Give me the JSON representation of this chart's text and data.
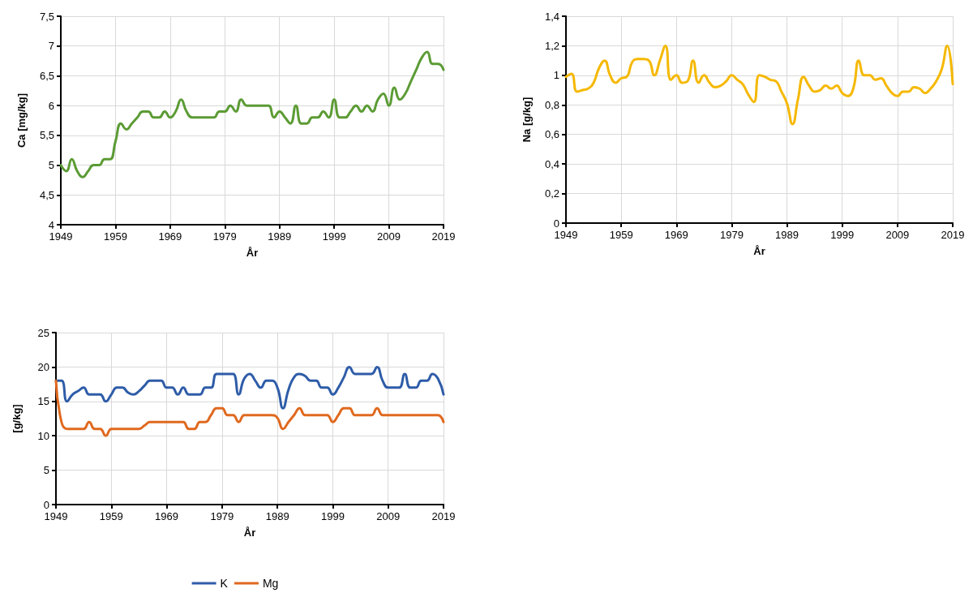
{
  "chart_data": [
    {
      "type": "line",
      "xlabel": "År",
      "ylabel": "Ca [mg/kg]",
      "grid": true,
      "legend": false,
      "x": [
        1949,
        1950,
        1951,
        1952,
        1953,
        1954,
        1955,
        1956,
        1957,
        1958,
        1959,
        1960,
        1961,
        1962,
        1963,
        1964,
        1965,
        1966,
        1967,
        1968,
        1969,
        1970,
        1971,
        1972,
        1973,
        1974,
        1975,
        1976,
        1977,
        1978,
        1979,
        1980,
        1981,
        1982,
        1983,
        1984,
        1985,
        1986,
        1987,
        1988,
        1989,
        1990,
        1991,
        1992,
        1993,
        1994,
        1995,
        1996,
        1997,
        1998,
        1999,
        2000,
        2001,
        2002,
        2003,
        2004,
        2005,
        2006,
        2007,
        2008,
        2009,
        2010,
        2011,
        2012,
        2013,
        2014,
        2015,
        2016,
        2017,
        2018,
        2019
      ],
      "series": [
        {
          "color": "#5b9b34",
          "values": [
            5.0,
            4.9,
            5.1,
            4.9,
            4.8,
            4.9,
            5.0,
            5.0,
            5.1,
            5.1,
            5.4,
            5.7,
            5.6,
            5.7,
            5.8,
            5.9,
            5.9,
            5.8,
            5.8,
            5.9,
            5.8,
            5.9,
            6.1,
            5.9,
            5.8,
            5.8,
            5.8,
            5.8,
            5.8,
            5.9,
            5.9,
            6.0,
            5.9,
            6.1,
            6.0,
            6.0,
            6.0,
            6.0,
            6.0,
            5.8,
            5.9,
            5.8,
            5.7,
            6.0,
            5.7,
            5.7,
            5.8,
            5.8,
            5.9,
            5.8,
            6.1,
            5.8,
            5.8,
            5.9,
            6.0,
            5.9,
            6.0,
            5.9,
            6.1,
            6.2,
            6.0,
            6.3,
            6.1,
            6.2,
            6.4,
            6.6,
            6.8,
            6.9,
            6.7,
            6.7,
            6.6
          ]
        }
      ],
      "xlim": [
        1949,
        2019
      ],
      "xticks": [
        1949,
        1959,
        1969,
        1979,
        1989,
        1999,
        2009,
        2019
      ],
      "ylim": [
        4,
        7.5
      ],
      "yticks": [
        4,
        {
          "value": 4.5,
          "label": "4,5"
        },
        5,
        {
          "value": 5.5,
          "label": "5,5"
        },
        6,
        {
          "value": 6.5,
          "label": "6,5"
        },
        7,
        {
          "value": 7.5,
          "label": "7,5"
        }
      ]
    },
    {
      "type": "line",
      "xlabel": "År",
      "ylabel": "Na [g/kg]",
      "grid": true,
      "legend": false,
      "x": [
        1949,
        1950,
        1951,
        1952,
        1953,
        1954,
        1955,
        1956,
        1957,
        1958,
        1959,
        1960,
        1961,
        1962,
        1963,
        1964,
        1965,
        1966,
        1967,
        1968,
        1969,
        1970,
        1971,
        1972,
        1973,
        1974,
        1975,
        1976,
        1977,
        1978,
        1979,
        1980,
        1981,
        1982,
        1983,
        1984,
        1985,
        1986,
        1987,
        1988,
        1989,
        1990,
        1991,
        1992,
        1993,
        1994,
        1995,
        1996,
        1997,
        1998,
        1999,
        2000,
        2001,
        2002,
        2003,
        2004,
        2005,
        2006,
        2007,
        2008,
        2009,
        2010,
        2011,
        2012,
        2013,
        2014,
        2015,
        2016,
        2017,
        2018,
        2019
      ],
      "series": [
        {
          "color": "#f5b800",
          "values": [
            0.99,
            1.01,
            0.89,
            0.9,
            0.91,
            0.95,
            1.05,
            1.1,
            1.0,
            0.95,
            0.98,
            0.99,
            1.09,
            1.11,
            1.11,
            1.1,
            1.0,
            1.1,
            1.2,
            0.97,
            1.0,
            0.95,
            0.96,
            1.1,
            0.95,
            1.0,
            0.95,
            0.92,
            0.93,
            0.96,
            1.0,
            0.97,
            0.94,
            0.87,
            0.82,
            1.0,
            0.99,
            0.97,
            0.96,
            0.89,
            0.81,
            0.67,
            0.84,
            0.99,
            0.93,
            0.89,
            0.9,
            0.93,
            0.91,
            0.93,
            0.88,
            0.86,
            0.91,
            1.1,
            1.0,
            1.0,
            0.97,
            0.98,
            0.93,
            0.88,
            0.86,
            0.89,
            0.89,
            0.92,
            0.91,
            0.88,
            0.91,
            0.96,
            1.04,
            1.2,
            0.94
          ]
        }
      ],
      "xlim": [
        1949,
        2019
      ],
      "xticks": [
        1949,
        1959,
        1969,
        1979,
        1989,
        1999,
        2009,
        2019
      ],
      "ylim": [
        0,
        1.4
      ],
      "yticks": [
        0,
        {
          "value": 0.2,
          "label": "0,2"
        },
        {
          "value": 0.4,
          "label": "0,4"
        },
        {
          "value": 0.6,
          "label": "0,6"
        },
        {
          "value": 0.8,
          "label": "0,8"
        },
        1,
        {
          "value": 1.2,
          "label": "1,2"
        },
        {
          "value": 1.4,
          "label": "1,4"
        }
      ]
    },
    {
      "type": "line",
      "xlabel": "År",
      "ylabel": "[g/kg]",
      "grid": true,
      "legend": "bottom",
      "x": [
        1949,
        1950,
        1951,
        1952,
        1953,
        1954,
        1955,
        1956,
        1957,
        1958,
        1959,
        1960,
        1961,
        1962,
        1963,
        1964,
        1965,
        1966,
        1967,
        1968,
        1969,
        1970,
        1971,
        1972,
        1973,
        1974,
        1975,
        1976,
        1977,
        1978,
        1979,
        1980,
        1981,
        1982,
        1983,
        1984,
        1985,
        1986,
        1987,
        1988,
        1989,
        1990,
        1991,
        1992,
        1993,
        1994,
        1995,
        1996,
        1997,
        1998,
        1999,
        2000,
        2001,
        2002,
        2003,
        2004,
        2005,
        2006,
        2007,
        2008,
        2009,
        2010,
        2011,
        2012,
        2013,
        2014,
        2015,
        2016,
        2017,
        2018,
        2019
      ],
      "series": [
        {
          "name": "K",
          "color": "#2e5ca8",
          "values": [
            18,
            18,
            15,
            16,
            16.5,
            17,
            16,
            16,
            16,
            15,
            16,
            17,
            17,
            16.3,
            16,
            16.5,
            17.3,
            18,
            18,
            18,
            17,
            17,
            16,
            17,
            16,
            16,
            16,
            17,
            17,
            19,
            19,
            19,
            19,
            16,
            18.3,
            19,
            18,
            17,
            18,
            18,
            17,
            14,
            16.7,
            18.5,
            19,
            18.7,
            18,
            18,
            17,
            17,
            16,
            17,
            18.5,
            20,
            19,
            19,
            19,
            19,
            20,
            18,
            17,
            17,
            17,
            19,
            17,
            17,
            18,
            18,
            19,
            18.3,
            16
          ]
        },
        {
          "name": "Mg",
          "color": "#e0691f",
          "values": [
            18,
            12,
            11,
            11,
            11,
            11,
            12,
            11,
            11,
            10,
            11,
            11,
            11,
            11,
            11,
            11,
            11.5,
            12,
            12,
            12,
            12,
            12,
            12,
            12,
            11,
            11,
            12,
            12,
            13,
            14,
            14,
            13,
            13,
            12,
            13,
            13,
            13,
            13,
            13,
            13,
            12.6,
            11,
            12,
            13,
            14,
            13,
            13,
            13,
            13,
            13,
            12,
            13,
            14,
            14,
            13,
            13,
            13,
            13,
            14,
            13,
            13,
            13,
            13,
            13,
            13,
            13,
            13,
            13,
            13,
            13,
            12
          ]
        }
      ],
      "xlim": [
        1949,
        2019
      ],
      "xticks": [
        1949,
        1959,
        1969,
        1979,
        1989,
        1999,
        2009,
        2019
      ],
      "ylim": [
        0,
        25
      ],
      "yticks": [
        0,
        5,
        10,
        15,
        20,
        25
      ]
    }
  ]
}
